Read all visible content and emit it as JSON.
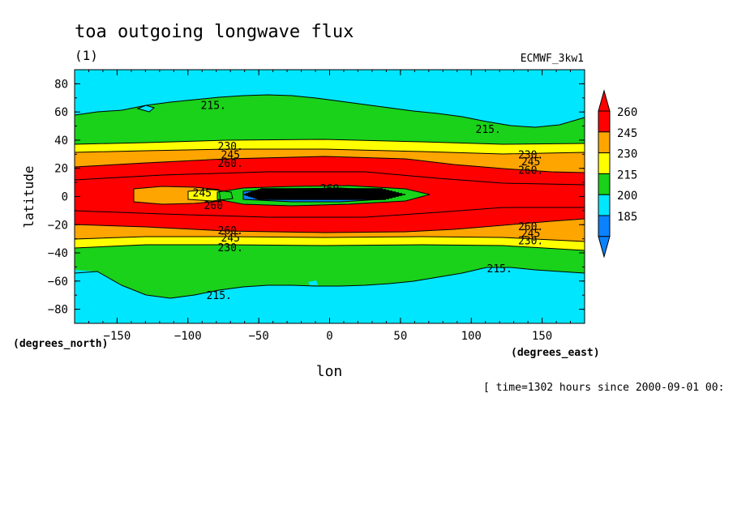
{
  "chart_data": {
    "type": "contour",
    "title": "toa outgoing longwave flux",
    "subtitle": "(1)",
    "dataset": "ECMWF_3kw1",
    "xlabel": "lon",
    "ylabel": "latitude",
    "x_unit_label": "(degrees_east)",
    "y_unit_label": "(degrees_north)",
    "time_note": "[ time=1302 hours since 2000-09-01 00:",
    "xlim": [
      -180,
      180
    ],
    "ylim": [
      -90,
      90
    ],
    "x_ticks": [
      -150,
      -100,
      -50,
      0,
      50,
      100,
      150
    ],
    "x_tick_labels": [
      "−150",
      "−100",
      "−50",
      "0",
      "50",
      "100",
      "150"
    ],
    "y_ticks": [
      80,
      60,
      40,
      20,
      0,
      -20,
      -40,
      -60,
      -80
    ],
    "y_tick_labels": [
      "80",
      "60",
      "40",
      "20",
      "0",
      "−20",
      "−40",
      "−60",
      "−80"
    ],
    "colorbar": {
      "levels": [
        185,
        200,
        215,
        230,
        245,
        260
      ],
      "labels": [
        "185",
        "200",
        "215",
        "230",
        "245",
        "260"
      ],
      "colors": [
        "#0a82ff",
        "#00e6ff",
        "#19d219",
        "#ffff00",
        "#ffa500",
        "#ff0000"
      ],
      "below_color": "#0a82ff",
      "above_color": "#ff0000"
    },
    "contour_labels": [
      {
        "text": "215.",
        "lon": -82,
        "lat": 65
      },
      {
        "text": "215.",
        "lon": 112,
        "lat": 48
      },
      {
        "text": "230.",
        "lon": -70,
        "lat": 36
      },
      {
        "text": "245",
        "lon": -70,
        "lat": 30
      },
      {
        "text": "260.",
        "lon": -70,
        "lat": 24
      },
      {
        "text": "230.",
        "lon": 142,
        "lat": 30
      },
      {
        "text": "245",
        "lon": 142,
        "lat": 25
      },
      {
        "text": "260.",
        "lon": 142,
        "lat": 19
      },
      {
        "text": "260",
        "lon": 0,
        "lat": 6
      },
      {
        "text": "245",
        "lon": -90,
        "lat": 3
      },
      {
        "text": "260",
        "lon": -82,
        "lat": -6
      },
      {
        "text": "260.",
        "lon": -70,
        "lat": -24
      },
      {
        "text": "245",
        "lon": -70,
        "lat": -29
      },
      {
        "text": "230.",
        "lon": -70,
        "lat": -36
      },
      {
        "text": "260.",
        "lon": 142,
        "lat": -21
      },
      {
        "text": "245",
        "lon": 142,
        "lat": -26
      },
      {
        "text": "230.",
        "lon": 142,
        "lat": -31
      },
      {
        "text": "215.",
        "lon": 120,
        "lat": -51
      },
      {
        "text": "215.",
        "lon": -78,
        "lat": -70
      }
    ]
  }
}
